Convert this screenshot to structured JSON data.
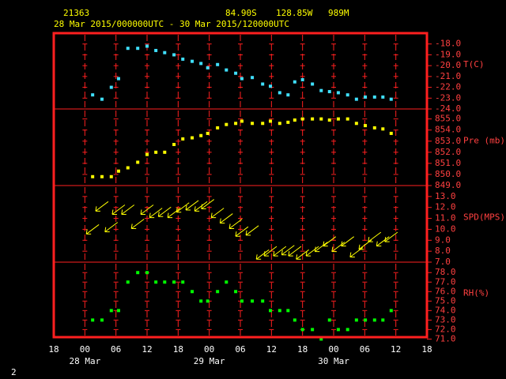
{
  "header": {
    "station": "21363",
    "lat": "84.90S",
    "lon": "128.85W",
    "elev": "989M",
    "period": "28 Mar 2015/000000UTC - 30 Mar 2015/120000UTC"
  },
  "footer": "2",
  "chart_data": [
    {
      "type": "scatter",
      "ylabel": "T(C)",
      "color": "#40e0ff",
      "x": [
        1.5,
        3.3,
        5.1,
        6.5,
        8.3,
        10.2,
        12.0,
        13.7,
        15.4,
        17.2,
        18.9,
        20.7,
        22.4,
        23.7,
        25.6,
        27.3,
        29.1,
        30.3,
        32.3,
        34.3,
        35.8,
        37.6,
        39.2,
        40.5,
        42.0,
        43.9,
        45.6,
        47.2,
        48.9,
        50.7,
        52.4,
        54.1,
        55.9,
        57.5,
        59.1
      ],
      "values": [
        -22.7,
        -23.1,
        -22.0,
        -21.2,
        -18.4,
        -18.4,
        -18.2,
        -18.6,
        -18.8,
        -19.0,
        -19.4,
        -19.6,
        -19.8,
        -20.2,
        -19.9,
        -20.4,
        -20.7,
        -21.2,
        -21.1,
        -21.7,
        -21.9,
        -22.5,
        -22.7,
        -21.5,
        -21.3,
        -21.7,
        -22.3,
        -22.4,
        -22.5,
        -22.7,
        -23.1,
        -22.9,
        -22.9,
        -22.9,
        -23.1
      ],
      "ylim": [
        -24,
        -17
      ],
      "yticks": [
        {
          "value": -18,
          "label": "-18.0"
        },
        {
          "value": -19,
          "label": "-19.0"
        },
        {
          "value": -20,
          "label": "-20.0"
        },
        {
          "value": -21,
          "label": "-21.0"
        },
        {
          "value": -22,
          "label": "-22.0"
        },
        {
          "value": -23,
          "label": "-23.0"
        },
        {
          "value": -24,
          "label": "-24.0"
        }
      ]
    },
    {
      "type": "scatter",
      "ylabel": "Pre (mb)",
      "color": "#ffff00",
      "x": [
        1.5,
        3.3,
        5.1,
        6.5,
        8.3,
        10.2,
        12.0,
        13.7,
        15.4,
        17.2,
        18.9,
        20.7,
        22.4,
        23.7,
        25.6,
        27.3,
        29.1,
        30.3,
        32.3,
        34.3,
        35.8,
        37.6,
        39.2,
        40.5,
        42.0,
        43.9,
        45.6,
        47.2,
        48.9,
        50.7,
        52.4,
        54.1,
        55.9,
        57.5,
        59.1
      ],
      "values": [
        849.8,
        849.8,
        849.8,
        850.3,
        850.6,
        851.1,
        851.8,
        852.0,
        852.0,
        852.7,
        853.2,
        853.3,
        853.5,
        853.7,
        854.2,
        854.5,
        854.6,
        854.8,
        854.6,
        854.6,
        854.8,
        854.6,
        854.7,
        854.9,
        855.0,
        855.0,
        855.0,
        854.9,
        855.0,
        855.0,
        854.6,
        854.4,
        854.2,
        854.1,
        853.7
      ],
      "ylim": [
        849,
        855.9
      ],
      "yticks": [
        {
          "value": 855,
          "label": "855.0"
        },
        {
          "value": 854,
          "label": "854.0"
        },
        {
          "value": 853,
          "label": "853.0"
        },
        {
          "value": 852,
          "label": "852.0"
        },
        {
          "value": 851,
          "label": "851.0"
        },
        {
          "value": 850,
          "label": "850.0"
        },
        {
          "value": 849,
          "label": "849.0"
        }
      ]
    },
    {
      "type": "arrow",
      "ylabel": "SPD(MPS)",
      "color": "#ffff00",
      "x": [
        1.5,
        3.3,
        5.1,
        6.5,
        8.3,
        10.2,
        12.0,
        13.7,
        15.4,
        17.2,
        18.9,
        20.7,
        22.4,
        23.7,
        25.6,
        27.3,
        29.1,
        30.3,
        32.3,
        34.3,
        35.8,
        37.6,
        39.2,
        40.5,
        42.0,
        43.9,
        45.6,
        47.2,
        48.9,
        50.7,
        52.4,
        54.1,
        55.9,
        57.5,
        59.1
      ],
      "values": [
        10.0,
        12.1,
        10.2,
        11.8,
        11.8,
        10.5,
        11.8,
        11.5,
        11.6,
        11.5,
        12.0,
        12.2,
        12.1,
        12.3,
        11.5,
        11.0,
        10.5,
        9.8,
        9.9,
        7.7,
        8.0,
        8.0,
        8.1,
        8.0,
        7.7,
        8.0,
        8.4,
        8.9,
        8.4,
        8.9,
        7.9,
        8.6,
        9.3,
        8.9,
        9.3
      ],
      "ylim": [
        7,
        14
      ],
      "yticks": [
        {
          "value": 13,
          "label": "13.0"
        },
        {
          "value": 12,
          "label": "12.0"
        },
        {
          "value": 11,
          "label": "11.0"
        },
        {
          "value": 10,
          "label": "10.0"
        },
        {
          "value": 9,
          "label": "9.0"
        },
        {
          "value": 8,
          "label": "8.0"
        },
        {
          "value": 7,
          "label": "7.0"
        }
      ]
    },
    {
      "type": "scatter",
      "ylabel": "RH(%)",
      "color": "#00ff00",
      "x": [
        1.5,
        3.3,
        5.1,
        6.5,
        8.3,
        10.2,
        12.0,
        13.7,
        15.4,
        17.2,
        18.9,
        20.7,
        22.4,
        23.7,
        25.6,
        27.3,
        29.1,
        30.3,
        32.3,
        34.3,
        35.8,
        37.6,
        39.2,
        40.5,
        42.0,
        43.9,
        45.6,
        47.2,
        48.9,
        50.7,
        52.4,
        54.1,
        55.9,
        57.5,
        59.1
      ],
      "values": [
        73,
        73,
        74,
        74,
        77,
        78,
        78,
        77,
        77,
        77,
        77,
        76,
        75,
        75,
        76,
        77,
        76,
        75,
        75,
        75,
        74,
        74,
        74,
        73,
        72,
        72,
        71,
        73,
        72,
        72,
        73,
        73,
        73,
        73,
        74
      ],
      "ylim": [
        71.2,
        79.1
      ],
      "yticks": [
        {
          "value": 78,
          "label": "78.0"
        },
        {
          "value": 77,
          "label": "77.0"
        },
        {
          "value": 76,
          "label": "76.0"
        },
        {
          "value": 75,
          "label": "75.0"
        },
        {
          "value": 74,
          "label": "74.0"
        },
        {
          "value": 73,
          "label": "73.0"
        },
        {
          "value": 72,
          "label": "72.0"
        },
        {
          "value": 71,
          "label": "71.0"
        }
      ],
      "xlim": [
        -6,
        66
      ],
      "xticks": [
        {
          "value": -6,
          "label": "18"
        },
        {
          "value": 0,
          "label": "00"
        },
        {
          "value": 6,
          "label": "06"
        },
        {
          "value": 12,
          "label": "12"
        },
        {
          "value": 18,
          "label": "18"
        },
        {
          "value": 24,
          "label": "00"
        },
        {
          "value": 30,
          "label": "06"
        },
        {
          "value": 36,
          "label": "12"
        },
        {
          "value": 42,
          "label": "18"
        },
        {
          "value": 48,
          "label": "00"
        },
        {
          "value": 54,
          "label": "06"
        },
        {
          "value": 60,
          "label": "12"
        },
        {
          "value": 66,
          "label": "18"
        }
      ],
      "date_labels": [
        {
          "value": 0,
          "label": "28 Mar"
        },
        {
          "value": 24,
          "label": "29 Mar"
        },
        {
          "value": 48,
          "label": "30 Mar"
        }
      ]
    }
  ]
}
